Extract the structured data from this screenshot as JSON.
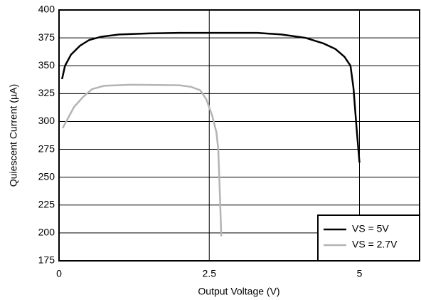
{
  "chart_data": {
    "type": "line",
    "x_label": "Output Voltage (V)",
    "y_label": "Quiescent Current (µA)",
    "xlim": [
      0,
      6
    ],
    "xticks": [
      0,
      2.5,
      5
    ],
    "ylim": [
      175,
      400
    ],
    "yticks": [
      175,
      200,
      225,
      250,
      275,
      300,
      325,
      350,
      375,
      400
    ],
    "grid": true,
    "legend": "lower right",
    "series": [
      {
        "name": "VS = 5V",
        "color": "#000000",
        "x": [
          0.05,
          0.1,
          0.2,
          0.35,
          0.5,
          0.7,
          1,
          1.5,
          2,
          3.3,
          3.7,
          4.1,
          4.4,
          4.6,
          4.75,
          4.85,
          4.9,
          4.95,
          5.0
        ],
        "values": [
          338,
          350,
          360,
          368,
          373,
          376,
          378,
          379,
          379.5,
          379.5,
          378,
          375,
          370,
          365,
          358,
          350,
          330,
          295,
          263
        ]
      },
      {
        "name": "VS = 2.7V",
        "color": "#b4b4b4",
        "x": [
          0.06,
          0.15,
          0.25,
          0.4,
          0.55,
          0.75,
          1.2,
          2,
          2.2,
          2.35,
          2.45,
          2.55,
          2.62,
          2.65,
          2.68,
          2.7
        ],
        "values": [
          294,
          303,
          313,
          322,
          329,
          332,
          333,
          332.5,
          331,
          328,
          320,
          305,
          290,
          275,
          230,
          197
        ]
      }
    ]
  }
}
